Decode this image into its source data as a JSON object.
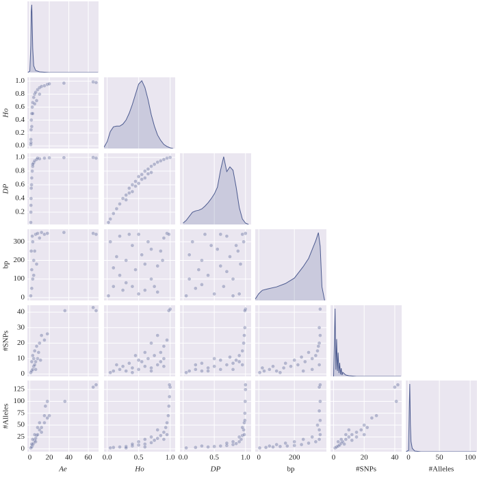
{
  "chart_data": {
    "type": "pairplot",
    "color": "#4c5a8f",
    "background": "#eae6f0",
    "grid": true,
    "kde_ylim": [
      0,
      1.05
    ],
    "variables": [
      {
        "name": "Ae",
        "italic": true,
        "xlim": [
          -2.5,
          70.5
        ],
        "xticks": [
          0,
          20,
          40,
          60
        ]
      },
      {
        "name": "Ho",
        "italic": true,
        "xlim": [
          -0.05,
          1.08
        ],
        "xticks": [
          {
            "value": 0,
            "label": "0.0"
          },
          0.5,
          {
            "value": 1,
            "label": "1.0"
          }
        ],
        "ylim": [
          -0.04,
          1.06
        ],
        "yticks": [
          {
            "value": 0,
            "label": "0.0"
          },
          0.2,
          0.4,
          0.6,
          0.8,
          {
            "value": 1,
            "label": "1.0"
          }
        ]
      },
      {
        "name": "DP",
        "italic": true,
        "xlim": [
          -0.05,
          1.09
        ],
        "xticks": [
          {
            "value": 0,
            "label": "0.0"
          },
          0.5,
          {
            "value": 1,
            "label": "1.0"
          }
        ],
        "ylim": [
          0.02,
          1.06
        ],
        "yticks": [
          0.2,
          0.4,
          0.6,
          0.8,
          {
            "value": 1,
            "label": "1.0"
          }
        ]
      },
      {
        "name": "bp",
        "italic": false,
        "xlim": [
          -20,
          380
        ],
        "xticks": [
          0,
          200
        ],
        "ylim": [
          -15,
          367
        ],
        "yticks": [
          0,
          100,
          200,
          300
        ]
      },
      {
        "name": "#SNPs",
        "italic": false,
        "xlim": [
          -2,
          44.5
        ],
        "xticks": [
          0,
          20,
          40
        ],
        "ylim": [
          -1.5,
          44.5
        ],
        "yticks": [
          0,
          10,
          20,
          30,
          40
        ]
      },
      {
        "name": "#Alleles",
        "italic": false,
        "xlim": [
          -4.5,
          111
        ],
        "xticks": [
          0,
          50,
          100
        ],
        "ylim": [
          -6,
          144
        ],
        "yticks": [
          0,
          25,
          50,
          75,
          100,
          125
        ]
      }
    ],
    "kde": [
      {
        "x": [
          -2,
          0,
          1,
          1.5,
          2,
          2.5,
          3,
          4,
          6,
          10,
          20,
          70
        ],
        "values": [
          0,
          0.02,
          0.4,
          0.9,
          1,
          0.7,
          0.35,
          0.1,
          0.03,
          0.01,
          0,
          0
        ]
      },
      {
        "x": [
          -0.05,
          0,
          0.05,
          0.1,
          0.15,
          0.2,
          0.25,
          0.3,
          0.35,
          0.4,
          0.45,
          0.5,
          0.55,
          0.6,
          0.65,
          0.7,
          0.75,
          0.8,
          0.85,
          0.9,
          0.95,
          1.0,
          1.05
        ],
        "values": [
          0.02,
          0.1,
          0.25,
          0.32,
          0.33,
          0.33,
          0.36,
          0.42,
          0.52,
          0.65,
          0.8,
          0.95,
          1.0,
          0.9,
          0.72,
          0.5,
          0.33,
          0.2,
          0.12,
          0.06,
          0.03,
          0.01,
          0
        ]
      },
      {
        "x": [
          0,
          0.05,
          0.1,
          0.15,
          0.2,
          0.25,
          0.3,
          0.35,
          0.4,
          0.45,
          0.5,
          0.55,
          0.6,
          0.65,
          0.7,
          0.75,
          0.8,
          0.85,
          0.9,
          0.95,
          1.0,
          1.05
        ],
        "values": [
          0.02,
          0.06,
          0.12,
          0.18,
          0.2,
          0.21,
          0.23,
          0.27,
          0.32,
          0.38,
          0.45,
          0.55,
          0.8,
          1.0,
          0.78,
          0.85,
          0.8,
          0.55,
          0.25,
          0.08,
          0.02,
          0
        ]
      },
      {
        "x": [
          -20,
          0,
          20,
          50,
          100,
          150,
          200,
          250,
          280,
          300,
          320,
          335,
          345,
          355,
          370
        ],
        "values": [
          0.02,
          0.1,
          0.15,
          0.17,
          0.2,
          0.25,
          0.33,
          0.5,
          0.62,
          0.75,
          0.88,
          1.0,
          0.8,
          0.2,
          0
        ]
      },
      {
        "x": [
          0,
          1,
          1.5,
          2,
          2.5,
          3,
          3.5,
          4,
          4.5,
          5,
          5.5,
          6,
          7,
          8,
          10,
          15,
          44
        ],
        "values": [
          0,
          1,
          0.1,
          0.55,
          0.08,
          0.35,
          0.05,
          0.2,
          0.03,
          0.12,
          0.02,
          0.06,
          0.04,
          0.02,
          0.01,
          0,
          0
        ]
      },
      {
        "x": [
          -4,
          0,
          1,
          2,
          3,
          4,
          6,
          10,
          20,
          110
        ],
        "values": [
          0,
          0.02,
          0.6,
          1,
          0.4,
          0.15,
          0.05,
          0.01,
          0,
          0
        ]
      }
    ],
    "panels": [
      {
        "x": [
          1,
          1.1,
          1.3,
          1.6,
          2,
          2.5,
          3,
          4,
          5,
          6,
          8,
          10,
          12,
          15,
          18,
          2,
          3,
          5,
          20,
          35,
          65,
          68,
          1.2,
          7,
          10
        ],
        "y": [
          0.02,
          0.1,
          0.25,
          0.4,
          0.5,
          0.6,
          0.67,
          0.75,
          0.8,
          0.83,
          0.87,
          0.9,
          0.92,
          0.93,
          0.95,
          0.3,
          0.5,
          0.65,
          0.96,
          0.97,
          0.99,
          0.98,
          0.05,
          0.7,
          0.8
        ]
      },
      {
        "x": [
          1,
          1.1,
          1.3,
          1.5,
          2,
          2.5,
          3,
          4,
          5,
          7,
          10,
          15,
          20,
          35,
          65,
          68,
          1.2,
          1.8,
          3,
          8
        ],
        "y": [
          0.05,
          0.2,
          0.4,
          0.55,
          0.7,
          0.8,
          0.87,
          0.92,
          0.95,
          0.97,
          0.98,
          0.99,
          0.995,
          0.997,
          1.0,
          0.99,
          0.3,
          0.6,
          0.9,
          0.99
        ]
      },
      {
        "x": [
          0.02,
          0.05,
          0.1,
          0.15,
          0.2,
          0.3,
          0.35,
          0.4,
          0.45,
          0.5,
          0.55,
          0.6,
          0.65,
          0.7,
          0.75,
          0.8,
          0.85,
          0.9,
          0.95,
          1.0,
          0.3,
          0.4,
          0.5,
          0.6,
          0.7,
          0.45,
          0.55,
          0.35,
          0.65,
          0.25
        ],
        "y": [
          0.05,
          0.1,
          0.18,
          0.25,
          0.32,
          0.45,
          0.55,
          0.6,
          0.65,
          0.72,
          0.75,
          0.8,
          0.83,
          0.87,
          0.9,
          0.93,
          0.95,
          0.97,
          0.99,
          1.0,
          0.38,
          0.5,
          0.62,
          0.7,
          0.78,
          0.58,
          0.68,
          0.48,
          0.76,
          0.4
        ]
      },
      {
        "x": [
          1,
          2,
          3,
          2,
          4,
          5,
          3,
          6,
          8,
          12,
          15,
          18,
          1.5,
          2.5,
          10,
          35,
          65,
          68,
          4,
          7
        ],
        "y": [
          10,
          50,
          100,
          150,
          200,
          250,
          300,
          340,
          345,
          350,
          340,
          345,
          250,
          330,
          320,
          350,
          345,
          340,
          120,
          180
        ]
      },
      {
        "x": [
          0.02,
          0.1,
          0.2,
          0.3,
          0.4,
          0.5,
          0.6,
          0.7,
          0.8,
          0.85,
          0.9,
          0.05,
          0.15,
          0.25,
          0.35,
          0.45,
          0.55,
          0.65,
          0.75,
          0.95,
          0.88,
          0.1,
          0.3,
          0.5,
          0.6,
          0.7,
          0.4,
          0.2,
          0.98,
          0.8
        ],
        "y": [
          10,
          60,
          120,
          200,
          280,
          340,
          40,
          100,
          170,
          250,
          320,
          300,
          220,
          40,
          340,
          150,
          230,
          300,
          60,
          345,
          200,
          160,
          80,
          20,
          180,
          260,
          60,
          330,
          340,
          30
        ]
      },
      {
        "x": [
          0.05,
          0.1,
          0.15,
          0.2,
          0.3,
          0.35,
          0.4,
          0.5,
          0.55,
          0.6,
          0.65,
          0.7,
          0.75,
          0.8,
          0.85,
          0.9,
          0.92,
          0.95,
          0.97,
          1.0,
          0.25,
          0.45,
          0.6,
          0.8,
          0.7,
          0.88,
          0.1,
          0.3
        ],
        "y": [
          10,
          100,
          300,
          50,
          200,
          340,
          120,
          20,
          260,
          170,
          60,
          330,
          220,
          100,
          280,
          20,
          180,
          340,
          300,
          345,
          150,
          280,
          340,
          10,
          140,
          250,
          230,
          70
        ]
      },
      {
        "x": [
          1,
          2,
          3,
          4,
          5,
          6,
          8,
          3,
          5,
          7,
          10,
          12,
          15,
          18,
          2,
          4,
          9,
          36,
          65,
          68,
          6,
          11
        ],
        "y": [
          1,
          2,
          3,
          5,
          6,
          8,
          10,
          12,
          15,
          18,
          20,
          25,
          22,
          26,
          8,
          10,
          14,
          41,
          43,
          41,
          3,
          9
        ]
      },
      {
        "x": [
          0.05,
          0.1,
          0.2,
          0.3,
          0.4,
          0.5,
          0.6,
          0.7,
          0.8,
          0.9,
          0.15,
          0.35,
          0.55,
          0.65,
          0.75,
          0.85,
          0.9,
          0.95,
          0.7,
          0.8,
          0.6,
          0.45,
          0.98,
          1.0,
          0.25,
          0.5,
          0.9,
          0.4,
          0.7,
          0.85
        ],
        "y": [
          1,
          2,
          3,
          2,
          4,
          3,
          5,
          4,
          6,
          5,
          6,
          7,
          8,
          10,
          12,
          14,
          18,
          22,
          20,
          25,
          14,
          12,
          41,
          42,
          5,
          9,
          10,
          1,
          2,
          8
        ]
      },
      {
        "x": [
          0.05,
          0.1,
          0.2,
          0.3,
          0.4,
          0.5,
          0.6,
          0.7,
          0.8,
          0.85,
          0.9,
          0.95,
          0.97,
          0.98,
          0.99,
          1.0,
          0.99,
          0.9,
          0.75,
          0.6,
          0.5,
          0.3,
          0.2,
          0.95,
          0.8,
          0.4
        ],
        "y": [
          1,
          2,
          3,
          2,
          4,
          5,
          3,
          6,
          7,
          9,
          12,
          15,
          20,
          25,
          30,
          42,
          41,
          8,
          11,
          9,
          10,
          7,
          6,
          6,
          3,
          2
        ]
      },
      {
        "x": [
          5,
          30,
          60,
          100,
          140,
          180,
          220,
          260,
          300,
          330,
          340,
          345,
          340,
          345,
          320,
          280,
          240,
          200,
          150,
          80,
          20,
          300,
          340,
          250,
          120,
          335
        ],
        "y": [
          1,
          2,
          3,
          2,
          4,
          5,
          6,
          8,
          10,
          15,
          20,
          25,
          30,
          42,
          12,
          14,
          11,
          9,
          7,
          5,
          4,
          3,
          6,
          2,
          1,
          18
        ]
      },
      {
        "x": [
          1,
          2,
          3,
          4,
          5,
          6,
          7,
          8,
          10,
          12,
          15,
          18,
          20,
          3,
          5,
          8,
          10,
          15,
          16,
          18,
          36,
          65,
          68,
          2,
          6,
          12
        ],
        "y": [
          2,
          4,
          8,
          12,
          18,
          22,
          28,
          30,
          40,
          45,
          55,
          65,
          70,
          20,
          30,
          45,
          55,
          70,
          90,
          100,
          100,
          130,
          135,
          10,
          15,
          35
        ]
      },
      {
        "x": [
          0.05,
          0.1,
          0.2,
          0.3,
          0.4,
          0.5,
          0.6,
          0.7,
          0.75,
          0.8,
          0.85,
          0.9,
          0.93,
          0.95,
          0.97,
          0.98,
          0.99,
          1.0,
          0.99,
          0.8,
          0.7,
          0.6,
          0.5,
          0.9,
          0.95,
          0.4,
          0.3,
          0.6
        ],
        "y": [
          2,
          3,
          4,
          5,
          6,
          8,
          10,
          13,
          18,
          22,
          28,
          35,
          45,
          55,
          70,
          90,
          110,
          130,
          135,
          40,
          25,
          20,
          15,
          20,
          30,
          10,
          2,
          4
        ]
      },
      {
        "x": [
          0.05,
          0.2,
          0.4,
          0.5,
          0.6,
          0.7,
          0.8,
          0.85,
          0.9,
          0.93,
          0.95,
          0.97,
          0.98,
          0.99,
          0.995,
          1.0,
          1.0,
          0.9,
          0.95,
          0.8,
          0.7,
          0.3,
          0.98,
          0.99
        ],
        "y": [
          2,
          3,
          4,
          5,
          6,
          7,
          9,
          11,
          15,
          20,
          28,
          40,
          55,
          75,
          100,
          125,
          135,
          25,
          45,
          15,
          12,
          6,
          30,
          60
        ]
      },
      {
        "x": [
          5,
          40,
          80,
          120,
          160,
          200,
          240,
          280,
          320,
          340,
          345,
          340,
          345,
          340,
          345,
          340,
          345,
          300,
          250,
          200,
          150,
          100,
          330,
          60
        ],
        "y": [
          2,
          3,
          4,
          5,
          6,
          7,
          9,
          12,
          15,
          20,
          30,
          40,
          60,
          80,
          100,
          130,
          135,
          25,
          20,
          15,
          12,
          9,
          50,
          6
        ]
      },
      {
        "x": [
          1,
          2,
          3,
          4,
          5,
          6,
          8,
          10,
          12,
          15,
          18,
          20,
          22,
          25,
          28,
          3,
          5,
          8,
          10,
          12,
          15,
          40,
          42,
          41,
          7,
          20
        ],
        "y": [
          2,
          4,
          6,
          8,
          12,
          15,
          20,
          25,
          30,
          35,
          40,
          50,
          45,
          65,
          70,
          15,
          20,
          30,
          40,
          18,
          25,
          130,
          135,
          100,
          10,
          30
        ]
      }
    ]
  }
}
